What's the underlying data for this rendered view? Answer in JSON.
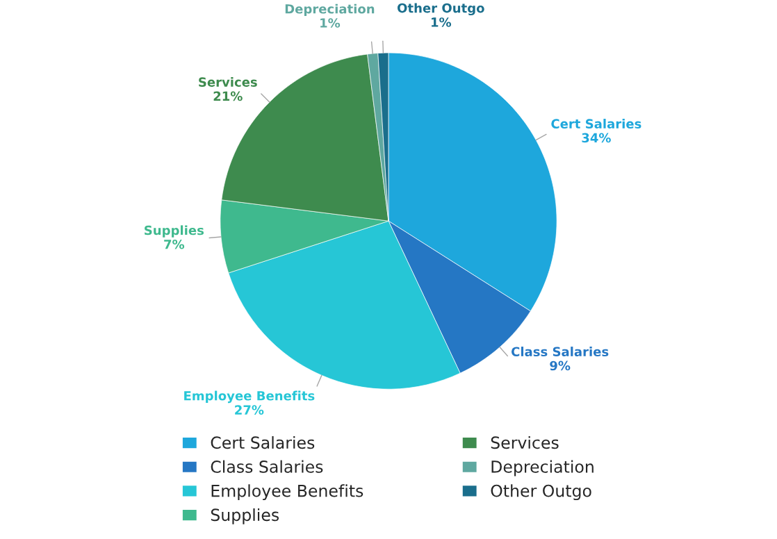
{
  "chart_data": {
    "type": "pie",
    "categories": [
      "Cert Salaries",
      "Class Salaries",
      "Employee Benefits",
      "Supplies",
      "Services",
      "Depreciation",
      "Other Outgo"
    ],
    "values": [
      34,
      9,
      27,
      7,
      21,
      1,
      1
    ],
    "value_labels": [
      "34%",
      "9%",
      "27%",
      "7%",
      "21%",
      "1%",
      "1%"
    ],
    "colors": [
      "#1ea7dc",
      "#2577c4",
      "#26c6d6",
      "#3fb98e",
      "#3e8b4e",
      "#5fa8a0",
      "#1a6e8c"
    ],
    "legend": "bottom"
  }
}
